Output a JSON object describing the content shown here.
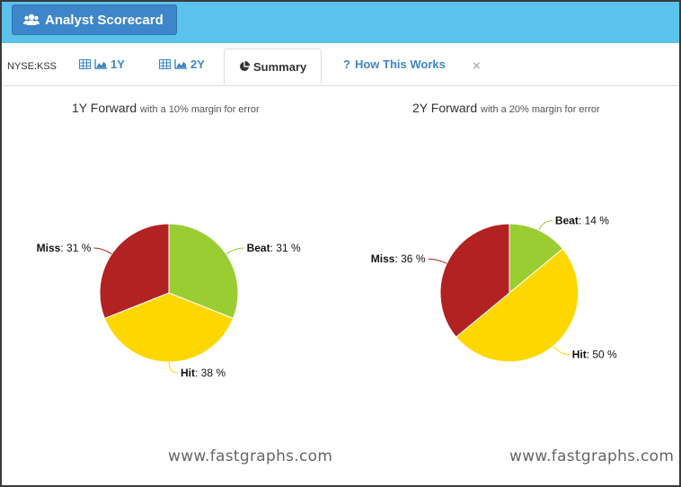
{
  "header": {
    "title": "Analyst Scorecard",
    "icon": "users-icon"
  },
  "tabs": {
    "ticker": "NYSE:KSS",
    "items": [
      {
        "label": "1Y",
        "icon": "table-chart-icon",
        "active": false
      },
      {
        "label": "2Y",
        "icon": "table-chart-icon",
        "active": false
      },
      {
        "label": "Summary",
        "icon": "pie-chart-icon",
        "active": true
      },
      {
        "label": "How This Works",
        "icon": "question-icon",
        "active": false
      }
    ],
    "close_label": "×"
  },
  "watermark": "www.fastgraphs.com",
  "chart_data": [
    {
      "type": "pie",
      "title": "1Y Forward",
      "subtitle": "with a 10% margin for error",
      "categories": [
        "Beat",
        "Hit",
        "Miss"
      ],
      "values": [
        31,
        38,
        31
      ],
      "value_labels": [
        "31 %",
        "38 %",
        "31 %"
      ],
      "colors": [
        "#9acd32",
        "#ffd700",
        "#b22222"
      ]
    },
    {
      "type": "pie",
      "title": "2Y Forward",
      "subtitle": "with a 20% margin for error",
      "categories": [
        "Beat",
        "Hit",
        "Miss"
      ],
      "values": [
        14,
        50,
        36
      ],
      "value_labels": [
        "14 %",
        "50 %",
        "36 %"
      ],
      "colors": [
        "#9acd32",
        "#ffd700",
        "#b22222"
      ]
    }
  ]
}
